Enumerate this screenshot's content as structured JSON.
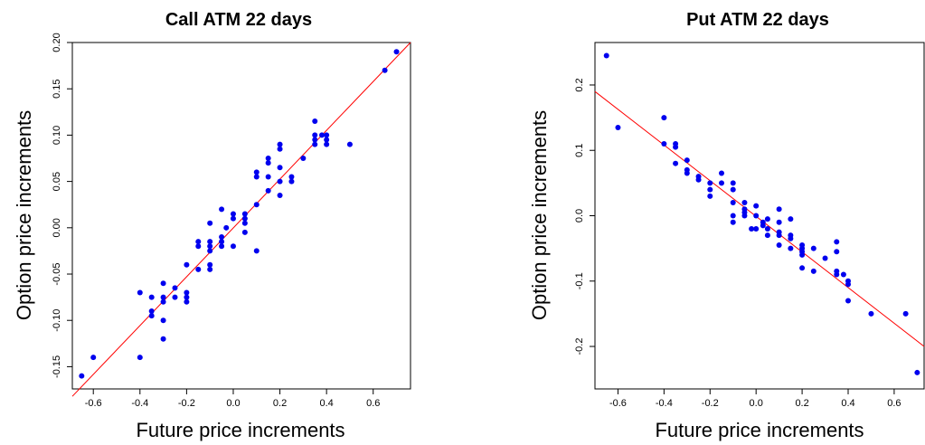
{
  "chart_data": [
    {
      "type": "scatter",
      "title": "Call ATM 22 days",
      "xlabel": "Future price increments",
      "ylabel": "Option price increments",
      "xlim": [
        -0.69,
        0.76
      ],
      "ylim": [
        -0.174,
        0.2
      ],
      "xticks": [
        "-0.6",
        "-0.4",
        "-0.2",
        "0.0",
        "0.2",
        "0.4",
        "0.6"
      ],
      "xtick_values": [
        -0.6,
        -0.4,
        -0.2,
        0.0,
        0.2,
        0.4,
        0.6
      ],
      "yticks": [
        "-0.15",
        "-0.10",
        "-0.05",
        "0.00",
        "0.05",
        "0.10",
        "0.15",
        "0.20"
      ],
      "ytick_values": [
        -0.15,
        -0.1,
        -0.05,
        0.0,
        0.05,
        0.1,
        0.15,
        0.2
      ],
      "point_color": "#0000ee",
      "line_color": "#ff0000",
      "fit_line": [
        [
          -0.69,
          -0.182
        ],
        [
          0.76,
          0.2
        ]
      ],
      "series": [
        {
          "points": [
            [
              -0.65,
              -0.16
            ],
            [
              -0.6,
              -0.14
            ],
            [
              -0.4,
              -0.14
            ],
            [
              -0.4,
              -0.07
            ],
            [
              -0.35,
              -0.095
            ],
            [
              -0.35,
              -0.09
            ],
            [
              -0.35,
              -0.075
            ],
            [
              -0.3,
              -0.12
            ],
            [
              -0.3,
              -0.1
            ],
            [
              -0.3,
              -0.08
            ],
            [
              -0.3,
              -0.075
            ],
            [
              -0.3,
              -0.06
            ],
            [
              -0.25,
              -0.075
            ],
            [
              -0.25,
              -0.065
            ],
            [
              -0.2,
              -0.08
            ],
            [
              -0.2,
              -0.075
            ],
            [
              -0.2,
              -0.07
            ],
            [
              -0.2,
              -0.04
            ],
            [
              -0.15,
              -0.045
            ],
            [
              -0.15,
              -0.02
            ],
            [
              -0.15,
              -0.015
            ],
            [
              -0.1,
              -0.045
            ],
            [
              -0.1,
              -0.04
            ],
            [
              -0.1,
              -0.025
            ],
            [
              -0.1,
              -0.02
            ],
            [
              -0.1,
              -0.015
            ],
            [
              -0.1,
              0.005
            ],
            [
              -0.05,
              -0.02
            ],
            [
              -0.05,
              -0.015
            ],
            [
              -0.05,
              -0.01
            ],
            [
              -0.05,
              0.02
            ],
            [
              -0.03,
              0.0
            ],
            [
              0.0,
              0.01
            ],
            [
              0.0,
              0.015
            ],
            [
              0.0,
              -0.02
            ],
            [
              0.05,
              -0.005
            ],
            [
              0.05,
              0.005
            ],
            [
              0.05,
              0.01
            ],
            [
              0.05,
              0.015
            ],
            [
              0.1,
              -0.025
            ],
            [
              0.1,
              0.025
            ],
            [
              0.1,
              0.055
            ],
            [
              0.1,
              0.06
            ],
            [
              0.15,
              0.04
            ],
            [
              0.15,
              0.055
            ],
            [
              0.15,
              0.07
            ],
            [
              0.15,
              0.075
            ],
            [
              0.2,
              0.035
            ],
            [
              0.2,
              0.05
            ],
            [
              0.2,
              0.065
            ],
            [
              0.2,
              0.085
            ],
            [
              0.2,
              0.09
            ],
            [
              0.25,
              0.05
            ],
            [
              0.25,
              0.055
            ],
            [
              0.3,
              0.075
            ],
            [
              0.35,
              0.09
            ],
            [
              0.35,
              0.095
            ],
            [
              0.35,
              0.1
            ],
            [
              0.35,
              0.115
            ],
            [
              0.38,
              0.1
            ],
            [
              0.4,
              0.09
            ],
            [
              0.4,
              0.095
            ],
            [
              0.4,
              0.1
            ],
            [
              0.5,
              0.09
            ],
            [
              0.65,
              0.17
            ],
            [
              0.7,
              0.19
            ]
          ]
        }
      ]
    },
    {
      "type": "scatter",
      "title": "Put ATM 22 days",
      "xlabel": "Future price increments",
      "ylabel": "Option price increments",
      "xlim": [
        -0.7,
        0.73
      ],
      "ylim": [
        -0.265,
        0.265
      ],
      "xticks": [
        "-0.6",
        "-0.4",
        "-0.2",
        "0.0",
        "0.2",
        "0.4",
        "0.6"
      ],
      "xtick_values": [
        -0.6,
        -0.4,
        -0.2,
        0.0,
        0.2,
        0.4,
        0.6
      ],
      "yticks": [
        "-0.2",
        "-0.1",
        "0.0",
        "0.1",
        "0.2"
      ],
      "ytick_values": [
        -0.2,
        -0.1,
        0.0,
        0.1,
        0.2
      ],
      "point_color": "#0000ee",
      "line_color": "#ff0000",
      "fit_line": [
        [
          -0.7,
          0.19
        ],
        [
          0.73,
          -0.2
        ]
      ],
      "series": [
        {
          "points": [
            [
              -0.65,
              0.245
            ],
            [
              -0.6,
              0.135
            ],
            [
              -0.4,
              0.15
            ],
            [
              -0.4,
              0.11
            ],
            [
              -0.35,
              0.11
            ],
            [
              -0.35,
              0.105
            ],
            [
              -0.35,
              0.08
            ],
            [
              -0.3,
              0.085
            ],
            [
              -0.3,
              0.07
            ],
            [
              -0.3,
              0.065
            ],
            [
              -0.25,
              0.06
            ],
            [
              -0.25,
              0.055
            ],
            [
              -0.2,
              0.05
            ],
            [
              -0.2,
              0.04
            ],
            [
              -0.2,
              0.03
            ],
            [
              -0.15,
              0.065
            ],
            [
              -0.15,
              0.05
            ],
            [
              -0.1,
              0.05
            ],
            [
              -0.1,
              0.04
            ],
            [
              -0.1,
              0.02
            ],
            [
              -0.1,
              -0.01
            ],
            [
              -0.1,
              0.0
            ],
            [
              -0.05,
              0.02
            ],
            [
              -0.05,
              0.01
            ],
            [
              -0.05,
              0.0
            ],
            [
              -0.05,
              0.005
            ],
            [
              0.0,
              0.015
            ],
            [
              0.0,
              0.0
            ],
            [
              0.0,
              -0.02
            ],
            [
              -0.02,
              -0.02
            ],
            [
              0.03,
              -0.01
            ],
            [
              0.03,
              -0.015
            ],
            [
              0.05,
              -0.005
            ],
            [
              0.05,
              -0.02
            ],
            [
              0.05,
              -0.03
            ],
            [
              0.1,
              0.01
            ],
            [
              0.1,
              -0.01
            ],
            [
              0.1,
              -0.025
            ],
            [
              0.1,
              -0.03
            ],
            [
              0.1,
              -0.045
            ],
            [
              0.15,
              -0.005
            ],
            [
              0.15,
              -0.03
            ],
            [
              0.15,
              -0.035
            ],
            [
              0.15,
              -0.05
            ],
            [
              0.2,
              -0.045
            ],
            [
              0.2,
              -0.05
            ],
            [
              0.2,
              -0.055
            ],
            [
              0.2,
              -0.06
            ],
            [
              0.2,
              -0.08
            ],
            [
              0.25,
              -0.05
            ],
            [
              0.25,
              -0.085
            ],
            [
              0.3,
              -0.065
            ],
            [
              0.35,
              -0.04
            ],
            [
              0.35,
              -0.055
            ],
            [
              0.35,
              -0.085
            ],
            [
              0.35,
              -0.09
            ],
            [
              0.38,
              -0.09
            ],
            [
              0.4,
              -0.1
            ],
            [
              0.4,
              -0.105
            ],
            [
              0.4,
              -0.13
            ],
            [
              0.5,
              -0.15
            ],
            [
              0.65,
              -0.15
            ],
            [
              0.7,
              -0.24
            ]
          ]
        }
      ]
    }
  ]
}
